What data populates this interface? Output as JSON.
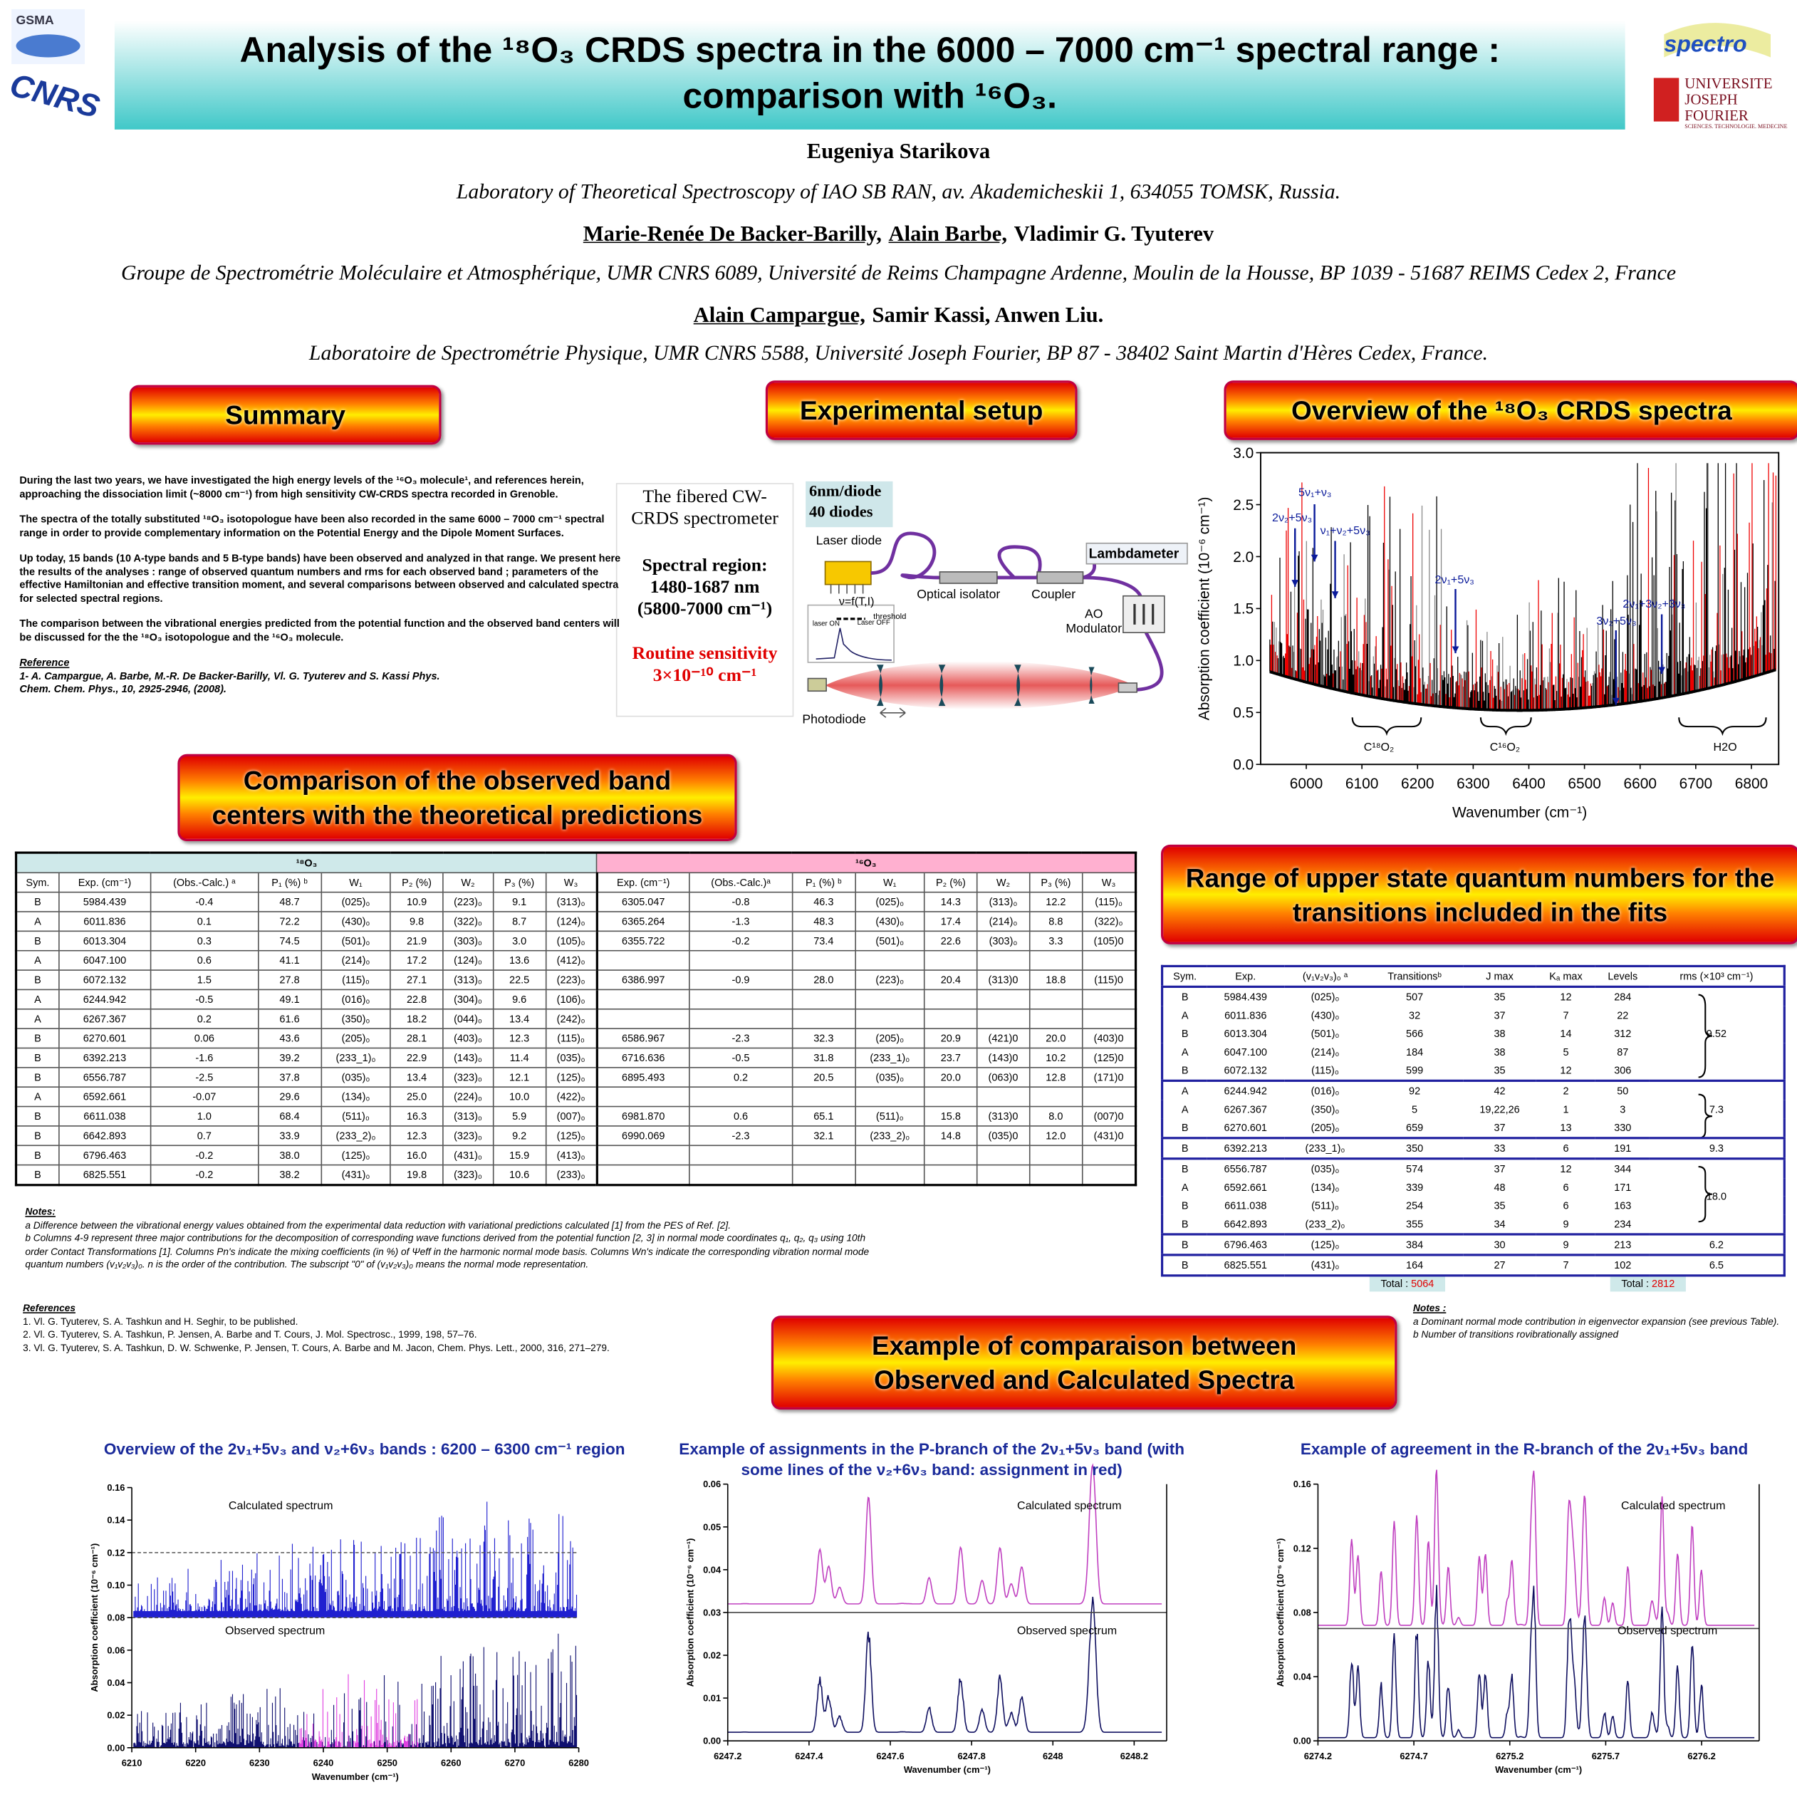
{
  "header": {
    "logos_left": [
      "GSMA",
      "CNRS"
    ],
    "logos_right": [
      "spectro",
      "UNIVERSITE",
      "JOSEPH FOURIER",
      "SCIENCES. TECHNOLOGIE. MEDECINE"
    ],
    "title_lines": [
      "Analysis of the ¹⁸O₃ CRDS spectra in the 6000 – 7000 cm⁻¹ spectral range :",
      "comparison with ¹⁶O₃."
    ],
    "author_lines": [
      [
        {
          "name": "Eugeniya Starikova",
          "underline": false
        }
      ],
      [
        {
          "name": "Marie-Renée De Backer-Barilly,",
          "underline": true
        },
        {
          "name": "Alain Barbe,",
          "underline": true
        },
        {
          "name": "Vladimir G. Tyuterev",
          "underline": false
        }
      ],
      [
        {
          "name": "Alain Campargue,",
          "underline": true
        },
        {
          "name": "Samir Kassi, Anwen Liu.",
          "underline": false
        }
      ]
    ],
    "affiliations": [
      "Laboratory of Theoretical Spectroscopy of IAO SB RAN, av. Akademicheskii 1, 634055 TOMSK, Russia.",
      "Groupe de Spectrométrie Moléculaire et Atmosphérique, UMR CNRS 6089, Université de Reims Champagne Ardenne, Moulin de la Housse, BP 1039 - 51687 REIMS Cedex 2, France",
      "Laboratoire de Spectrométrie Physique, UMR CNRS 5588, Université Joseph Fourier, BP 87 - 38402 Saint Martin d'Hères Cedex, France."
    ]
  },
  "summary": {
    "heading": "Summary",
    "paragraphs": [
      "During the last two years, we have investigated the high energy levels of the ¹⁶O₃ molecule¹, and references herein, approaching the dissociation limit (~8000 cm⁻¹) from high sensitivity CW-CRDS spectra recorded in Grenoble.",
      "The spectra of the totally substituted ¹⁸O₃ isotopologue have been also recorded in the same 6000 – 7000 cm⁻¹ spectral range in order to provide complementary information on the Potential Energy and the Dipole Moment Surfaces.",
      "Up today, 15 bands (10 A-type bands and 5 B-type bands) have been observed and analyzed in that range. We present here the results of the analyses : range of observed quantum numbers and rms for each observed band ; parameters of the effective Hamiltonian and effective transition moment, and several comparisons between observed and calculated spectra for selected spectral regions.",
      "The comparison between the vibrational energies predicted from the potential function and the observed band centers will be discussed for the the ¹⁸O₃ isotopologue and the ¹⁶O₃ molecule."
    ],
    "reference_title": "Reference",
    "reference": "1- A. Campargue, A. Barbe, M.-R. De Backer-Barilly, Vl. G. Tyuterev and S. Kassi Phys. Chem. Chem. Phys., 10, 2925-2946, (2008)."
  },
  "setup": {
    "heading": "Experimental setup",
    "box_title": "The fibered CW-CRDS spectrometer",
    "region_label": "Spectral region:",
    "region_nm": "1480-1687 nm",
    "region_cm": "(5800-7000 cm⁻¹)",
    "sensitivity_label": "Routine sensitivity",
    "sensitivity": "3×10⁻¹⁰ cm⁻¹",
    "diodes": [
      "6nm/diode",
      "40 diodes"
    ],
    "laser_diode": "Laser diode",
    "lambdameter": "Lambdameter",
    "isolator": "Optical isolator",
    "coupler": "Coupler",
    "ao_modulator": [
      "AO",
      "Modulator"
    ],
    "tuning": "ν=f(T,I)",
    "threshold": "threshold",
    "laser_on": "laser ON",
    "laser_off": "Laser OFF",
    "photodiode": "Photodiode"
  },
  "overview": {
    "heading": "Overview of the ¹⁸O₃ CRDS spectra"
  },
  "comparison": {
    "heading_lines": [
      "Comparison of the observed band",
      "centers with the theoretical predictions"
    ],
    "groups": [
      "¹⁸O₃",
      "¹⁶O₃"
    ],
    "columns_18": [
      "Sym.",
      "Exp. (cm⁻¹)",
      "(Obs.-Calc.) ᵃ",
      "P₁ (%) ᵇ",
      "W₁",
      "P₂ (%)",
      "W₂",
      "P₃ (%)",
      "W₃"
    ],
    "columns_16": [
      "Exp. (cm⁻¹)",
      "(Obs.-Calc.)ᵃ",
      "P₁ (%) ᵇ",
      "W₁",
      "P₂ (%)",
      "W₂",
      "P₃ (%)",
      "W₃"
    ],
    "rows_18": [
      [
        "B",
        "5984.439",
        "-0.4",
        "48.7",
        "(025)₀",
        "10.9",
        "(223)₀",
        "9.1",
        "(313)₀"
      ],
      [
        "A",
        "6011.836",
        "0.1",
        "72.2",
        "(430)₀",
        "9.8",
        "(322)₀",
        "8.7",
        "(124)₀"
      ],
      [
        "B",
        "6013.304",
        "0.3",
        "74.5",
        "(501)₀",
        "21.9",
        "(303)₀",
        "3.0",
        "(105)₀"
      ],
      [
        "A",
        "6047.100",
        "0.6",
        "41.1",
        "(214)₀",
        "17.2",
        "(124)₀",
        "13.6",
        "(412)₀"
      ],
      [
        "B",
        "6072.132",
        "1.5",
        "27.8",
        "(115)₀",
        "27.1",
        "(313)₀",
        "22.5",
        "(223)₀"
      ],
      [
        "A",
        "6244.942",
        "-0.5",
        "49.1",
        "(016)₀",
        "22.8",
        "(304)₀",
        "9.6",
        "(106)₀"
      ],
      [
        "A",
        "6267.367",
        "0.2",
        "61.6",
        "(350)₀",
        "18.2",
        "(044)₀",
        "13.4",
        "(242)₀"
      ],
      [
        "B",
        "6270.601",
        "0.06",
        "43.6",
        "(205)₀",
        "28.1",
        "(403)₀",
        "12.3",
        "(115)₀"
      ],
      [
        "B",
        "6392.213",
        "-1.6",
        "39.2",
        "(233_1)₀",
        "22.9",
        "(143)₀",
        "11.4",
        "(035)₀"
      ],
      [
        "B",
        "6556.787",
        "-2.5",
        "37.8",
        "(035)₀",
        "13.4",
        "(323)₀",
        "12.1",
        "(125)₀"
      ],
      [
        "A",
        "6592.661",
        "-0.07",
        "29.6",
        "(134)₀",
        "25.0",
        "(224)₀",
        "10.0",
        "(422)₀"
      ],
      [
        "B",
        "6611.038",
        "1.0",
        "68.4",
        "(511)₀",
        "16.3",
        "(313)₀",
        "5.9",
        "(007)₀"
      ],
      [
        "B",
        "6642.893",
        "0.7",
        "33.9",
        "(233_2)₀",
        "12.3",
        "(323)₀",
        "9.2",
        "(125)₀"
      ],
      [
        "B",
        "6796.463",
        "-0.2",
        "38.0",
        "(125)₀",
        "16.0",
        "(431)₀",
        "15.9",
        "(413)₀"
      ],
      [
        "B",
        "6825.551",
        "-0.2",
        "38.2",
        "(431)₀",
        "19.8",
        "(323)₀",
        "10.6",
        "(233)₀"
      ]
    ],
    "rows_16": [
      [
        "6305.047",
        "-0.8",
        "46.3",
        "(025)₀",
        "14.3",
        "(313)₀",
        "12.2",
        "(115)₀"
      ],
      [
        "6365.264",
        "-1.3",
        "48.3",
        "(430)₀",
        "17.4",
        "(214)₀",
        "8.8",
        "(322)₀"
      ],
      [
        "6355.722",
        "-0.2",
        "73.4",
        "(501)₀",
        "22.6",
        "(303)₀",
        "3.3",
        "(105)0"
      ],
      null,
      [
        "6386.997",
        "-0.9",
        "28.0",
        "(223)₀",
        "20.4",
        "(313)0",
        "18.8",
        "(115)0"
      ],
      null,
      null,
      [
        "6586.967",
        "-2.3",
        "32.3",
        "(205)₀",
        "20.9",
        "(421)0",
        "20.0",
        "(403)0"
      ],
      [
        "6716.636",
        "-0.5",
        "31.8",
        "(233_1)₀",
        "23.7",
        "(143)0",
        "10.2",
        "(125)0"
      ],
      [
        "6895.493",
        "0.2",
        "20.5",
        "(035)₀",
        "20.0",
        "(063)0",
        "12.8",
        "(171)0"
      ],
      null,
      [
        "6981.870",
        "0.6",
        "65.1",
        "(511)₀",
        "15.8",
        "(313)0",
        "8.0",
        "(007)0"
      ],
      [
        "6990.069",
        "-2.3",
        "32.1",
        "(233_2)₀",
        "14.8",
        "(035)0",
        "12.0",
        "(431)0"
      ],
      null,
      null
    ],
    "notes_title": "Notes:",
    "notes": [
      "a Difference between the vibrational energy values obtained from the experimental data reduction with variational predictions calculated [1] from the PES of Ref. [2].",
      "b Columns 4-9 represent three major contributions for the decomposition of corresponding wave functions derived from the potential function [2, 3] in normal mode coordinates q₁, q₂, q₃ using 10th order Contact Transformations [1]. Columns Pn's indicate the mixing coefficients (in %) of Ψeff in the harmonic normal mode basis. Columns Wn's indicate the corresponding vibration normal mode quantum numbers (v₁v₂v₃)₀. n is the order of the contribution. The subscript \"0\" of (v₁v₂v₃)₀ means the normal mode representation."
    ],
    "references_title": "References",
    "references": [
      "1. Vl. G. Tyuterev, S. A. Tashkun and H. Seghir, to be published.",
      "2. Vl. G. Tyuterev, S. A. Tashkun, P. Jensen, A. Barbe and T. Cours, J. Mol. Spectrosc., 1999, 198, 57–76.",
      "3. Vl. G. Tyuterev, S. A. Tashkun, D. W. Schwenke, P. Jensen, T. Cours, A. Barbe and M. Jacon, Chem. Phys. Lett., 2000, 316, 271–279."
    ]
  },
  "range": {
    "heading_lines": [
      "Range of upper state quantum numbers for the",
      "transitions included in the fits"
    ],
    "columns": [
      "Sym.",
      "Exp.",
      "(v₁v₂v₃)₀ ᵃ",
      "Transitionsᵇ",
      "J max",
      "Kₐ max",
      "Levels",
      "rms (×10³ cm⁻¹)"
    ],
    "groups": [
      {
        "rows": [
          [
            "B",
            "5984.439",
            "(025)₀",
            "507",
            "35",
            "12",
            "284"
          ],
          [
            "A",
            "6011.836",
            "(430)₀",
            "32",
            "37",
            "7",
            "22"
          ],
          [
            "B",
            "6013.304",
            "(501)₀",
            "566",
            "38",
            "14",
            "312"
          ],
          [
            "A",
            "6047.100",
            "(214)₀",
            "184",
            "38",
            "5",
            "87"
          ],
          [
            "B",
            "6072.132",
            "(115)₀",
            "599",
            "35",
            "12",
            "306"
          ]
        ],
        "rms": "9.52"
      },
      {
        "rows": [
          [
            "A",
            "6244.942",
            "(016)₀",
            "92",
            "42",
            "2",
            "50"
          ],
          [
            "A",
            "6267.367",
            "(350)₀",
            "5",
            "19,22,26",
            "1",
            "3"
          ],
          [
            "B",
            "6270.601",
            "(205)₀",
            "659",
            "37",
            "13",
            "330"
          ]
        ],
        "rms": "7.3"
      },
      {
        "rows": [
          [
            "B",
            "6392.213",
            "(233_1)₀",
            "350",
            "33",
            "6",
            "191"
          ]
        ],
        "rms": "9.3"
      },
      {
        "rows": [
          [
            "B",
            "6556.787",
            "(035)₀",
            "574",
            "37",
            "12",
            "344"
          ],
          [
            "A",
            "6592.661",
            "(134)₀",
            "339",
            "48",
            "6",
            "171"
          ],
          [
            "B",
            "6611.038",
            "(511)₀",
            "254",
            "35",
            "6",
            "163"
          ],
          [
            "B",
            "6642.893",
            "(233_2)₀",
            "355",
            "34",
            "9",
            "234"
          ]
        ],
        "rms": "18.0"
      },
      {
        "rows": [
          [
            "B",
            "6796.463",
            "(125)₀",
            "384",
            "30",
            "9",
            "213"
          ]
        ],
        "rms": "6.2"
      },
      {
        "rows": [
          [
            "B",
            "6825.551",
            "(431)₀",
            "164",
            "27",
            "7",
            "102"
          ]
        ],
        "rms": "6.5"
      }
    ],
    "totals": [
      {
        "label": "Total :",
        "value": "5064"
      },
      {
        "label": "Total :",
        "value": "2812"
      }
    ],
    "notes_title": "Notes :",
    "notes": [
      "a Dominant normal mode contribution in eigenvector expansion (see previous Table).",
      "b Number of transitions rovibrationally assigned"
    ]
  },
  "example": {
    "heading_lines": [
      "Example of comparaison between",
      "Observed and Calculated Spectra"
    ]
  },
  "chart_data": [
    {
      "type": "line",
      "xlabel": "Wavenumber (cm⁻¹)",
      "ylabel": "Absorption coefficient (10⁻⁶ cm⁻¹)",
      "xlim": [
        5918,
        6849
      ],
      "ylim": [
        0,
        3
      ],
      "xticks": [
        6000,
        6100,
        6200,
        6300,
        6400,
        6500,
        6600,
        6700,
        6800
      ],
      "yticks": [
        {
          "value": 0,
          "label": "0.0"
        },
        {
          "value": 0.5,
          "label": "0.5"
        },
        {
          "value": 1,
          "label": "1.0"
        },
        {
          "value": 1.5,
          "label": "1.5"
        },
        {
          "value": 2,
          "label": "2.0"
        },
        {
          "value": 2.5,
          "label": "2.5"
        },
        {
          "value": 3,
          "label": "3.0"
        }
      ],
      "colors": [
        "#000000",
        "#ee0000",
        "#888888"
      ],
      "annotations": [
        "5ν₁+ν₃",
        "2ν₂+5ν₃",
        "ν₁+ν₂+5ν₃",
        "2ν₁+5ν₃",
        "2ν₁+3ν₂+3ν₃",
        "3ν₂+5ν₃",
        "C¹⁸O₂",
        "C¹⁶O₂",
        "H2O"
      ]
    },
    {
      "type": "line",
      "title": "Overview of the 2ν₁+5ν₃ and ν₂+6ν₃ bands : 6200 – 6300 cm⁻¹ region",
      "xlabel": "Wavenumber (cm⁻¹)",
      "ylabel": "Absorption coefficient (10⁻⁶ cm⁻¹)",
      "xlim": [
        6210,
        6280
      ],
      "ylim": [
        0,
        0.16
      ],
      "xticks": [
        6210,
        6220,
        6230,
        6240,
        6250,
        6260,
        6270,
        6280
      ],
      "yticks": [
        {
          "value": 0,
          "label": "0.00"
        },
        {
          "value": 0.02,
          "label": "0.02"
        },
        {
          "value": 0.04,
          "label": "0.04"
        },
        {
          "value": 0.06,
          "label": "0.06"
        },
        {
          "value": 0.08,
          "label": "0.08"
        },
        {
          "value": 0.1,
          "label": "0.10"
        },
        {
          "value": 0.12,
          "label": "0.12"
        },
        {
          "value": 0.14,
          "label": "0.14"
        },
        {
          "value": 0.16,
          "label": "0.16"
        }
      ],
      "colors": [
        "#2020d0",
        "#101070",
        "#e040e0"
      ],
      "panel_labels": [
        "Calculated spectrum",
        "Observed spectrum"
      ]
    },
    {
      "type": "line",
      "title": "Example of assignments in the P-branch of the 2ν₁+5ν₃ band (with some lines of the ν₂+6ν₃ band: assignment in red)",
      "xlabel": "Wavenumber (cm⁻¹)",
      "ylabel": "Absorption coefficient (10⁻⁶ cm⁻¹)",
      "xlim": [
        6247.2,
        6248.28
      ],
      "ylim": [
        0,
        0.06
      ],
      "xticks": [
        {
          "value": 6247.2,
          "label": "6247.2"
        },
        {
          "value": 6247.4,
          "label": "6247.4"
        },
        {
          "value": 6247.6,
          "label": "6247.6"
        },
        {
          "value": 6247.8,
          "label": "6247.8"
        },
        6248,
        {
          "value": 6248.2,
          "label": "6248.2"
        }
      ],
      "yticks": [
        {
          "value": 0,
          "label": "0.00"
        },
        {
          "value": 0.01,
          "label": "0.01"
        },
        {
          "value": 0.02,
          "label": "0.02"
        },
        {
          "value": 0.03,
          "label": "0.03"
        },
        {
          "value": 0.04,
          "label": "0.04"
        },
        {
          "value": 0.05,
          "label": "0.05"
        },
        {
          "value": 0.06,
          "label": "0.06"
        }
      ],
      "colors": [
        "#c040c0",
        "#101060"
      ],
      "panel_labels": [
        "Calculated spectrum",
        "Observed spectrum"
      ]
    },
    {
      "type": "line",
      "title": "Example of agreement in the R-branch of the 2ν₁+5ν₃ band",
      "xlabel": "Wavenumber (cm⁻¹)",
      "ylabel": "Absorption coefficient (10⁻⁶ cm⁻¹)",
      "xlim": [
        6274.2,
        6276.5
      ],
      "ylim": [
        0,
        0.16
      ],
      "xticks": [
        {
          "value": 6274.2,
          "label": "6274.2"
        },
        {
          "value": 6274.7,
          "label": "6274.7"
        },
        {
          "value": 6275.2,
          "label": "6275.2"
        },
        {
          "value": 6275.7,
          "label": "6275.7"
        },
        {
          "value": 6276.2,
          "label": "6276.2"
        }
      ],
      "yticks": [
        {
          "value": 0,
          "label": "0.00"
        },
        {
          "value": 0.04,
          "label": "0.04"
        },
        {
          "value": 0.08,
          "label": "0.08"
        },
        {
          "value": 0.12,
          "label": "0.12"
        },
        {
          "value": 0.16,
          "label": "0.16"
        }
      ],
      "colors": [
        "#c040c0",
        "#101060"
      ],
      "panel_labels": [
        "Calculated spectrum",
        "Observed spectrum"
      ]
    }
  ]
}
